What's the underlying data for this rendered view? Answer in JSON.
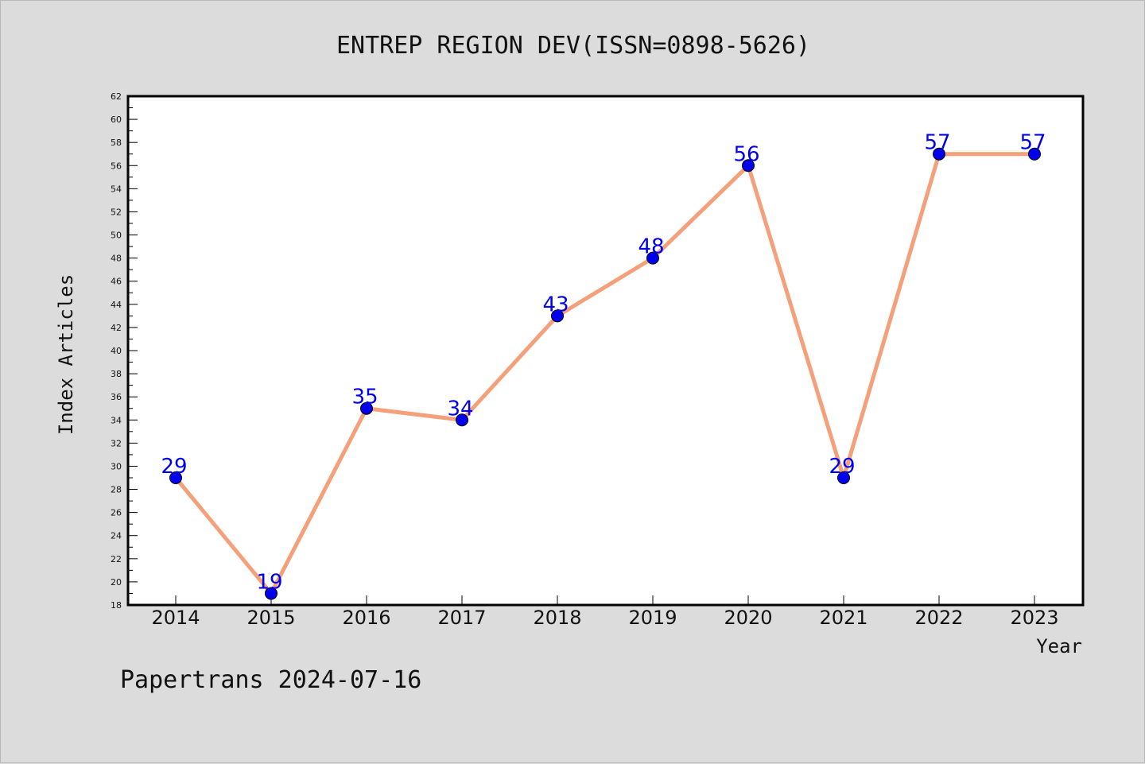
{
  "chart_data": {
    "type": "line",
    "title": "ENTREP REGION DEV(ISSN=0898-5626)",
    "xlabel": "Year",
    "ylabel": "Index Articles",
    "categories": [
      "2014",
      "2015",
      "2016",
      "2017",
      "2018",
      "2019",
      "2020",
      "2021",
      "2022",
      "2023"
    ],
    "series": [
      {
        "values": [
          29,
          19,
          35,
          34,
          43,
          48,
          56,
          29,
          57,
          57
        ]
      }
    ],
    "data_labels": [
      "29",
      "19",
      "35",
      "34",
      "43",
      "48",
      "56",
      "29",
      "57",
      "57"
    ],
    "ylim": [
      18,
      62
    ],
    "yticks": [
      "18",
      "20",
      "22",
      "24",
      "26",
      "28",
      "30",
      "32",
      "34",
      "36",
      "38",
      "40",
      "42",
      "44",
      "46",
      "48",
      "50",
      "52",
      "54",
      "56",
      "58",
      "60",
      "62"
    ],
    "grid": false,
    "legend": "none",
    "line_color": "#f4a07a",
    "marker_color": "#0000ee",
    "label_color": "#0000ee"
  },
  "footer": {
    "text": "Papertrans 2024-07-16"
  }
}
